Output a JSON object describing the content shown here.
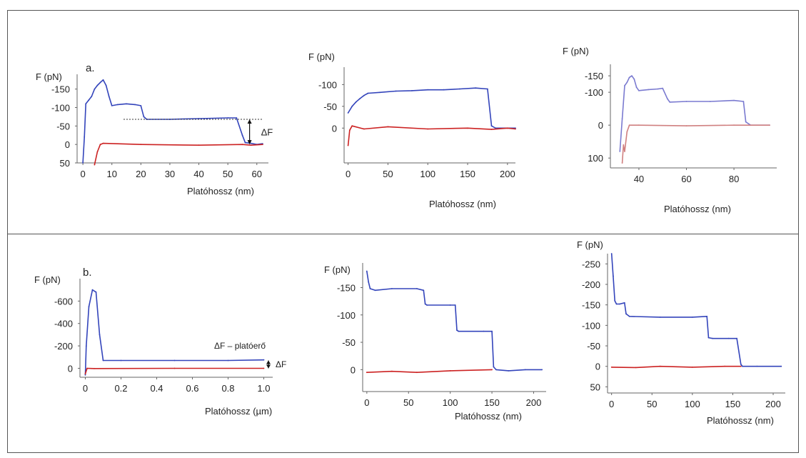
{
  "chart_data": [
    {
      "type": "line",
      "panel_label": "a.",
      "ylabel": "F (pN)",
      "xlabel": "Platóhossz (nm)",
      "xticks": [
        0,
        10,
        20,
        30,
        40,
        50,
        60
      ],
      "yticks": [
        -150,
        -100,
        -50,
        0,
        50
      ],
      "xlim": [
        -2,
        64
      ],
      "ylim": [
        50,
        -190
      ],
      "annotation": "ΔF",
      "series": [
        {
          "color": "#3344bb",
          "points": [
            [
              0,
              50
            ],
            [
              0.5,
              -20
            ],
            [
              1,
              -110
            ],
            [
              2,
              -120
            ],
            [
              3,
              -130
            ],
            [
              4,
              -150
            ],
            [
              5,
              -160
            ],
            [
              6,
              -168
            ],
            [
              7,
              -175
            ],
            [
              8,
              -160
            ],
            [
              9,
              -130
            ],
            [
              10,
              -105
            ],
            [
              12,
              -108
            ],
            [
              15,
              -110
            ],
            [
              18,
              -108
            ],
            [
              20,
              -105
            ],
            [
              21,
              -75
            ],
            [
              22,
              -68
            ],
            [
              30,
              -68
            ],
            [
              40,
              -70
            ],
            [
              50,
              -72
            ],
            [
              53,
              -72
            ],
            [
              55,
              -25
            ],
            [
              56,
              -5
            ],
            [
              58,
              -3
            ],
            [
              60,
              0
            ],
            [
              62,
              -2
            ]
          ]
        },
        {
          "color": "#cc2222",
          "points": [
            [
              4,
              55
            ],
            [
              5,
              20
            ],
            [
              6,
              0
            ],
            [
              7,
              -3
            ],
            [
              20,
              0
            ],
            [
              40,
              2
            ],
            [
              55,
              0
            ],
            [
              58,
              2
            ],
            [
              62,
              0
            ]
          ]
        }
      ]
    },
    {
      "type": "line",
      "ylabel": "F (pN)",
      "xlabel": "Platóhossz (nm)",
      "xticks": [
        0,
        50,
        100,
        150,
        200
      ],
      "yticks": [
        -100,
        -50,
        0
      ],
      "xlim": [
        -5,
        210
      ],
      "ylim": [
        80,
        -140
      ],
      "series": [
        {
          "color": "#3344bb",
          "points": [
            [
              0,
              -35
            ],
            [
              5,
              -50
            ],
            [
              10,
              -60
            ],
            [
              15,
              -68
            ],
            [
              20,
              -75
            ],
            [
              25,
              -80
            ],
            [
              40,
              -82
            ],
            [
              60,
              -85
            ],
            [
              80,
              -86
            ],
            [
              100,
              -88
            ],
            [
              120,
              -88
            ],
            [
              140,
              -90
            ],
            [
              160,
              -92
            ],
            [
              175,
              -90
            ],
            [
              180,
              -5
            ],
            [
              185,
              0
            ],
            [
              200,
              0
            ],
            [
              210,
              0
            ]
          ]
        },
        {
          "color": "#cc2222",
          "points": [
            [
              0,
              40
            ],
            [
              2,
              5
            ],
            [
              5,
              -5
            ],
            [
              20,
              2
            ],
            [
              50,
              -3
            ],
            [
              100,
              2
            ],
            [
              150,
              0
            ],
            [
              180,
              3
            ],
            [
              200,
              0
            ],
            [
              210,
              2
            ]
          ]
        }
      ]
    },
    {
      "type": "line",
      "ylabel": "F (pN)",
      "xlabel": "Platóhossz (nm)",
      "xticks": [
        40,
        60,
        80
      ],
      "yticks": [
        -150,
        -100,
        0,
        100
      ],
      "xlim": [
        28,
        98
      ],
      "ylim": [
        130,
        -185
      ],
      "series": [
        {
          "color": "#7a7ad0",
          "points": [
            [
              32,
              80
            ],
            [
              33,
              -20
            ],
            [
              34,
              -120
            ],
            [
              35,
              -130
            ],
            [
              36,
              -145
            ],
            [
              37,
              -150
            ],
            [
              38,
              -140
            ],
            [
              39,
              -115
            ],
            [
              40,
              -105
            ],
            [
              44,
              -108
            ],
            [
              48,
              -110
            ],
            [
              50,
              -112
            ],
            [
              52,
              -80
            ],
            [
              53,
              -70
            ],
            [
              60,
              -72
            ],
            [
              70,
              -72
            ],
            [
              80,
              -75
            ],
            [
              84,
              -72
            ],
            [
              85,
              -10
            ],
            [
              87,
              0
            ],
            [
              95,
              0
            ]
          ]
        },
        {
          "color": "#d08080",
          "points": [
            [
              33,
              115
            ],
            [
              33.5,
              60
            ],
            [
              34,
              80
            ],
            [
              35,
              20
            ],
            [
              36,
              0
            ],
            [
              40,
              0
            ],
            [
              60,
              2
            ],
            [
              80,
              0
            ],
            [
              95,
              0
            ]
          ]
        }
      ]
    },
    {
      "type": "line",
      "panel_label": "b.",
      "ylabel": "F (pN)",
      "xlabel": "Platóhossz (µm)",
      "xticks": [
        0,
        0.2,
        0.4,
        0.6,
        0.8,
        1.0
      ],
      "xtick_labels": [
        "0",
        "0.2",
        "0.4",
        "0.6",
        "0.8",
        "1.0"
      ],
      "yticks": [
        -600,
        -400,
        -200,
        0
      ],
      "xlim": [
        -0.03,
        1.05
      ],
      "ylim": [
        80,
        -800
      ],
      "annotations": [
        "ΔF – platóerő",
        "ΔF"
      ],
      "series": [
        {
          "color": "#3344bb",
          "points": [
            [
              0,
              60
            ],
            [
              0.005,
              -200
            ],
            [
              0.02,
              -550
            ],
            [
              0.04,
              -700
            ],
            [
              0.06,
              -680
            ],
            [
              0.08,
              -300
            ],
            [
              0.1,
              -70
            ],
            [
              0.2,
              -70
            ],
            [
              0.5,
              -70
            ],
            [
              0.8,
              -70
            ],
            [
              1.0,
              -75
            ]
          ]
        },
        {
          "color": "#cc2222",
          "points": [
            [
              0,
              50
            ],
            [
              0.01,
              0
            ],
            [
              0.05,
              2
            ],
            [
              0.5,
              0
            ],
            [
              1.0,
              0
            ]
          ]
        }
      ]
    },
    {
      "type": "line",
      "ylabel": "F (pN)",
      "xlabel": "Platóhossz (nm)",
      "xticks": [
        0,
        50,
        100,
        150,
        200
      ],
      "yticks": [
        -150,
        -100,
        -50,
        0
      ],
      "xlim": [
        -5,
        215
      ],
      "ylim": [
        40,
        -195
      ],
      "series": [
        {
          "color": "#3344bb",
          "points": [
            [
              0,
              -180
            ],
            [
              2,
              -160
            ],
            [
              4,
              -148
            ],
            [
              10,
              -145
            ],
            [
              30,
              -148
            ],
            [
              60,
              -148
            ],
            [
              68,
              -145
            ],
            [
              70,
              -120
            ],
            [
              72,
              -118
            ],
            [
              100,
              -118
            ],
            [
              106,
              -118
            ],
            [
              108,
              -72
            ],
            [
              110,
              -70
            ],
            [
              140,
              -70
            ],
            [
              150,
              -70
            ],
            [
              152,
              -5
            ],
            [
              155,
              0
            ],
            [
              170,
              2
            ],
            [
              190,
              0
            ],
            [
              210,
              0
            ]
          ]
        },
        {
          "color": "#cc2222",
          "points": [
            [
              0,
              5
            ],
            [
              30,
              3
            ],
            [
              60,
              5
            ],
            [
              100,
              2
            ],
            [
              150,
              0
            ]
          ]
        }
      ]
    },
    {
      "type": "line",
      "ylabel": "F (pN)",
      "xlabel": "Platóhossz (nm)",
      "xticks": [
        0,
        50,
        100,
        150,
        200
      ],
      "yticks": [
        -250,
        -200,
        -150,
        -100,
        -50,
        0,
        50
      ],
      "xlim": [
        -5,
        215
      ],
      "ylim": [
        65,
        -275
      ],
      "series": [
        {
          "color": "#3344bb",
          "points": [
            [
              0,
              -275
            ],
            [
              2,
              -220
            ],
            [
              4,
              -160
            ],
            [
              6,
              -152
            ],
            [
              10,
              -152
            ],
            [
              16,
              -155
            ],
            [
              18,
              -128
            ],
            [
              22,
              -122
            ],
            [
              60,
              -120
            ],
            [
              100,
              -120
            ],
            [
              118,
              -122
            ],
            [
              120,
              -70
            ],
            [
              125,
              -68
            ],
            [
              145,
              -68
            ],
            [
              155,
              -68
            ],
            [
              160,
              -5
            ],
            [
              162,
              0
            ],
            [
              180,
              0
            ],
            [
              210,
              0
            ]
          ]
        },
        {
          "color": "#cc2222",
          "points": [
            [
              0,
              2
            ],
            [
              30,
              3
            ],
            [
              60,
              0
            ],
            [
              100,
              2
            ],
            [
              140,
              0
            ],
            [
              160,
              0
            ]
          ]
        }
      ]
    }
  ]
}
